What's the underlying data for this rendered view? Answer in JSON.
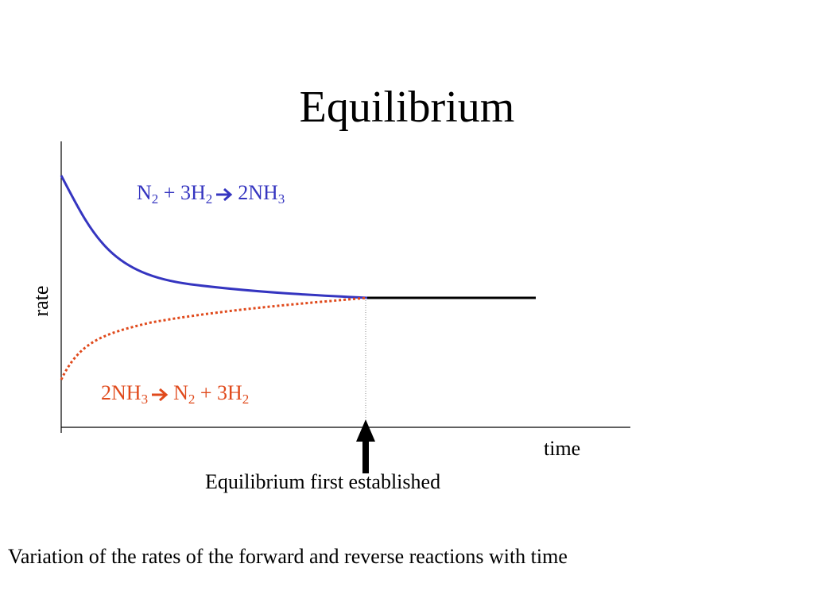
{
  "slide": {
    "title": "Equilibrium",
    "caption": "Variation of the rates of the forward and reverse reactions with time"
  },
  "axes": {
    "x_label": "time",
    "y_label": "rate"
  },
  "annotation": {
    "text": "Equilibrium first established"
  },
  "reactions": {
    "forward": {
      "color": "#3535c0",
      "line_style": "solid",
      "parts": [
        {
          "t": "N"
        },
        {
          "s": "2"
        },
        {
          "t": " + 3H"
        },
        {
          "s": "2"
        },
        {
          "arrow": "right-arrow-icon"
        },
        {
          "t": "2NH"
        },
        {
          "s": "3"
        }
      ]
    },
    "reverse": {
      "color": "#e04a1c",
      "line_style": "dotted",
      "parts": [
        {
          "t": "2NH"
        },
        {
          "s": "3"
        },
        {
          "arrow": "right-arrow-icon"
        },
        {
          "t": "N"
        },
        {
          "s": "2"
        },
        {
          "t": " + 3H"
        },
        {
          "s": "2"
        }
      ]
    },
    "equilibrium_line_color": "#000000"
  }
}
